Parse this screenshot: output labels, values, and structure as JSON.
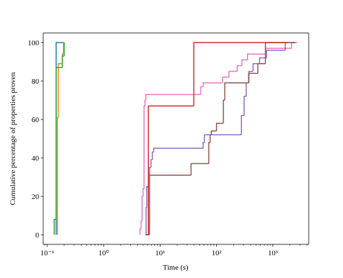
{
  "chart_data": {
    "type": "step",
    "xlabel": "Time (s)",
    "ylabel": "Cumulative percentage of properties proven",
    "xscale": "log",
    "xlim": [
      0.085,
      4300
    ],
    "ylim": [
      -5,
      105
    ],
    "xticks": [
      {
        "value": 0.1,
        "label": "10⁻¹"
      },
      {
        "value": 1,
        "label": "10⁰"
      },
      {
        "value": 10,
        "label": "10¹"
      },
      {
        "value": 100,
        "label": "10²"
      },
      {
        "value": 1000,
        "label": "10³"
      }
    ],
    "yticks": [
      0,
      20,
      40,
      60,
      80,
      100
    ],
    "series": [
      {
        "color": "#1f77b4",
        "x": [
          0.144,
          0.2
        ],
        "values": [
          100,
          100
        ]
      },
      {
        "color": "#ff7f0e",
        "x": [
          0.152,
          0.157,
          0.185,
          0.195,
          0.2
        ],
        "values": [
          61,
          89,
          94,
          100,
          100
        ]
      },
      {
        "color": "#2ca02c",
        "x": [
          0.133,
          0.144,
          0.185,
          0.2,
          0.2
        ],
        "values": [
          8,
          87,
          93,
          100,
          100
        ]
      },
      {
        "color": "#e377c2",
        "x": [
          4.4,
          4.6,
          4.8,
          5.0,
          5.2,
          5.4,
          5.6,
          52.5,
          57.9,
          128,
          166,
          232,
          282,
          354,
          735,
          2140,
          2700
        ],
        "values": [
          3,
          7,
          20,
          24,
          67,
          70,
          73,
          77,
          79,
          82,
          85,
          88,
          91,
          94,
          97,
          100,
          100
        ]
      },
      {
        "color": "#9467bd",
        "x": [
          5.5,
          5.65,
          5.8,
          6.2,
          6.5,
          6.9,
          7.3,
          7.7,
          58,
          61,
          275,
          308,
          336,
          375,
          445,
          580,
          770,
          1650,
          2500
        ],
        "values": [
          0,
          14,
          25,
          31,
          35,
          39,
          43,
          45,
          48,
          52,
          62,
          72,
          79,
          85,
          89,
          92,
          96,
          100,
          100
        ]
      },
      {
        "color": "#8c564b",
        "x": [
          5.8,
          6.5,
          35.4,
          73,
          77,
          81,
          100,
          132,
          140,
          370,
          540,
          735,
          2500
        ],
        "values": [
          0,
          31,
          37,
          48,
          52,
          54,
          58,
          70,
          79,
          84,
          89,
          100,
          100
        ]
      },
      {
        "color": "#d62728",
        "x": [
          5.5,
          6.2,
          39.6,
          1800
        ],
        "values": [
          0,
          67,
          100,
          100
        ]
      }
    ]
  }
}
